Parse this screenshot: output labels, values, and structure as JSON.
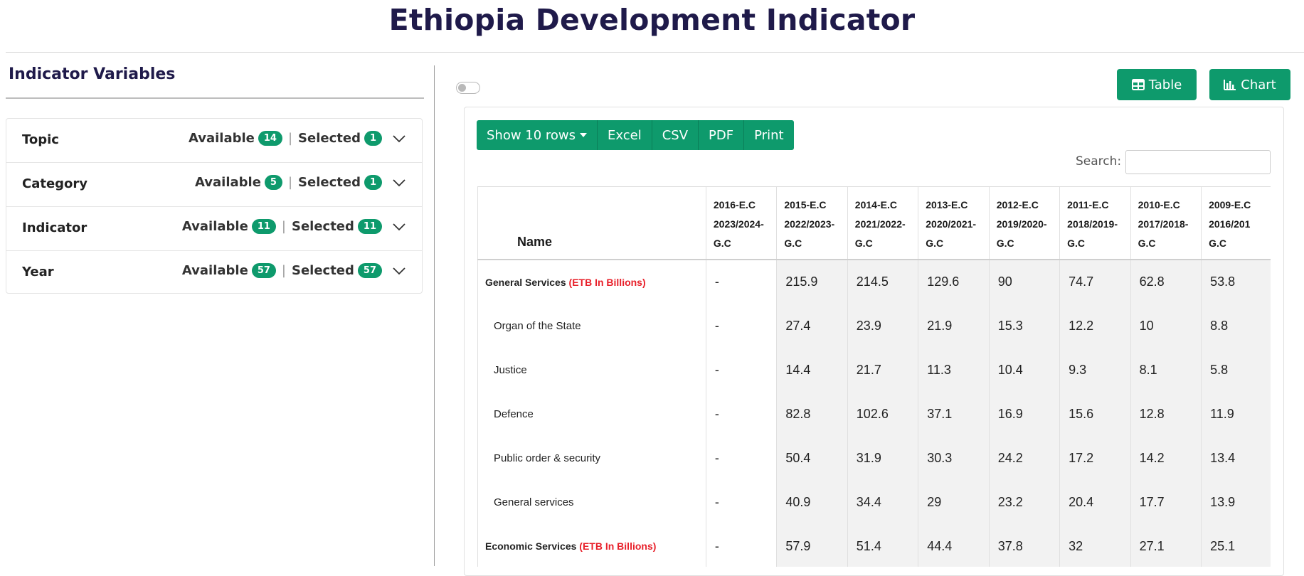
{
  "page": {
    "title": "Ethiopia Development Indicator"
  },
  "sidebar": {
    "heading": "Indicator Variables",
    "available_label": "Available",
    "selected_label": "Selected",
    "separator": "|",
    "filters": [
      {
        "label": "Topic",
        "available": "14",
        "selected": "1"
      },
      {
        "label": "Category",
        "available": "5",
        "selected": "1"
      },
      {
        "label": "Indicator",
        "available": "11",
        "selected": "11"
      },
      {
        "label": "Year",
        "available": "57",
        "selected": "57"
      }
    ]
  },
  "view": {
    "table_label": "Table",
    "chart_label": "Chart"
  },
  "toolbar": {
    "show_rows": "Show 10 rows",
    "excel": "Excel",
    "csv": "CSV",
    "pdf": "PDF",
    "print": "Print"
  },
  "search": {
    "label": "Search:",
    "value": ""
  },
  "table": {
    "name_header": "Name",
    "columns": [
      {
        "ec": "2016-E.C",
        "gc": "2023/2024-",
        "tail": "G.C"
      },
      {
        "ec": "2015-E.C",
        "gc": "2022/2023-",
        "tail": "G.C"
      },
      {
        "ec": "2014-E.C",
        "gc": "2021/2022-",
        "tail": "G.C"
      },
      {
        "ec": "2013-E.C",
        "gc": "2020/2021-",
        "tail": "G.C"
      },
      {
        "ec": "2012-E.C",
        "gc": "2019/2020-",
        "tail": "G.C"
      },
      {
        "ec": "2011-E.C",
        "gc": "2018/2019-",
        "tail": "G.C"
      },
      {
        "ec": "2010-E.C",
        "gc": "2017/2018-",
        "tail": "G.C"
      },
      {
        "ec": "2009-E.C",
        "gc": "2016/201",
        "tail": "G.C"
      }
    ],
    "rows": [
      {
        "name": "General Services",
        "unit": "(ETB In Billions)",
        "group": true,
        "values": [
          "-",
          "215.9",
          "214.5",
          "129.6",
          "90",
          "74.7",
          "62.8",
          "53.8"
        ]
      },
      {
        "name": "Organ of the State",
        "unit": "",
        "group": false,
        "values": [
          "-",
          "27.4",
          "23.9",
          "21.9",
          "15.3",
          "12.2",
          "10",
          "8.8"
        ]
      },
      {
        "name": "Justice",
        "unit": "",
        "group": false,
        "values": [
          "-",
          "14.4",
          "21.7",
          "11.3",
          "10.4",
          "9.3",
          "8.1",
          "5.8"
        ]
      },
      {
        "name": "Defence",
        "unit": "",
        "group": false,
        "values": [
          "-",
          "82.8",
          "102.6",
          "37.1",
          "16.9",
          "15.6",
          "12.8",
          "11.9"
        ]
      },
      {
        "name": "Public order & security",
        "unit": "",
        "group": false,
        "values": [
          "-",
          "50.4",
          "31.9",
          "30.3",
          "24.2",
          "17.2",
          "14.2",
          "13.4"
        ]
      },
      {
        "name": "General services",
        "unit": "",
        "group": false,
        "values": [
          "-",
          "40.9",
          "34.4",
          "29",
          "23.2",
          "20.4",
          "17.7",
          "13.9"
        ]
      },
      {
        "name": "Economic Services",
        "unit": "(ETB In Billions)",
        "group": true,
        "values": [
          "-",
          "57.9",
          "51.4",
          "44.4",
          "37.8",
          "32",
          "27.1",
          "25.1"
        ]
      }
    ]
  },
  "colors": {
    "accent": "#0e9a6c",
    "title": "#1f1a4a",
    "unit": "#e8202a"
  }
}
